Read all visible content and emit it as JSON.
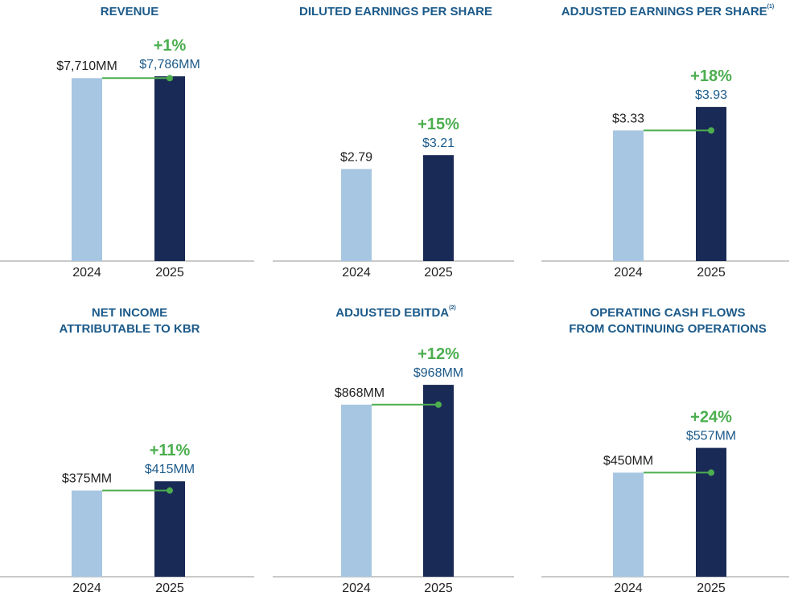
{
  "colors": {
    "bar_prior": "#a7c6e2",
    "bar_current": "#1a2a56",
    "growth": "#4cae4f",
    "title": "#1b5a8a",
    "axis": "#b8b8b8"
  },
  "chart_data": [
    {
      "type": "bar",
      "title": "REVENUE",
      "title_sup": "",
      "categories": [
        "2024",
        "2025"
      ],
      "values": [
        7710,
        7786
      ],
      "value_labels": [
        "$7,710MM",
        "$7,786MM"
      ],
      "growth_label": "+1%",
      "show_connector": true,
      "ylim": [
        0,
        7786
      ]
    },
    {
      "type": "bar",
      "title": "DILUTED EARNINGS PER SHARE",
      "title_sup": "",
      "categories": [
        "2024",
        "2025"
      ],
      "values": [
        2.79,
        3.21
      ],
      "value_labels": [
        "$2.79",
        "$3.21"
      ],
      "growth_label": "+15%",
      "show_connector": false,
      "ylim": [
        0,
        5.6
      ]
    },
    {
      "type": "bar",
      "title": "ADJUSTED EARNINGS PER SHARE",
      "title_sup": "(1)",
      "categories": [
        "2024",
        "2025"
      ],
      "values": [
        3.33,
        3.93
      ],
      "value_labels": [
        "$3.33",
        "$3.93"
      ],
      "growth_label": "+18%",
      "show_connector": true,
      "ylim": [
        0,
        4.71
      ]
    },
    {
      "type": "bar",
      "title": "NET INCOME ATTRIBUTABLE TO KBR",
      "title_lines": [
        "NET INCOME",
        "ATTRIBUTABLE TO KBR"
      ],
      "title_sup": "",
      "categories": [
        "2024",
        "2025"
      ],
      "values": [
        375,
        415
      ],
      "value_labels": [
        "$375MM",
        "$415MM"
      ],
      "growth_label": "+11%",
      "show_connector": true,
      "ylim": [
        0,
        1006
      ]
    },
    {
      "type": "bar",
      "title": "ADJUSTED EBITDA",
      "title_sup": "(2)",
      "categories": [
        "2024",
        "2025"
      ],
      "values": [
        868,
        968
      ],
      "value_labels": [
        "$868MM",
        "$968MM"
      ],
      "growth_label": "+12%",
      "show_connector": true,
      "ylim": [
        0,
        1167
      ]
    },
    {
      "type": "bar",
      "title": "OPERATING CASH FLOWS FROM CONTINUING OPERATIONS",
      "title_lines": [
        "OPERATING CASH FLOWS",
        "FROM CONTINUING OPERATIONS"
      ],
      "title_sup": "",
      "categories": [
        "2024",
        "2025"
      ],
      "values": [
        450,
        557
      ],
      "value_labels": [
        "$450MM",
        "$557MM"
      ],
      "growth_label": "+24%",
      "show_connector": true,
      "ylim": [
        0,
        1000
      ]
    }
  ]
}
